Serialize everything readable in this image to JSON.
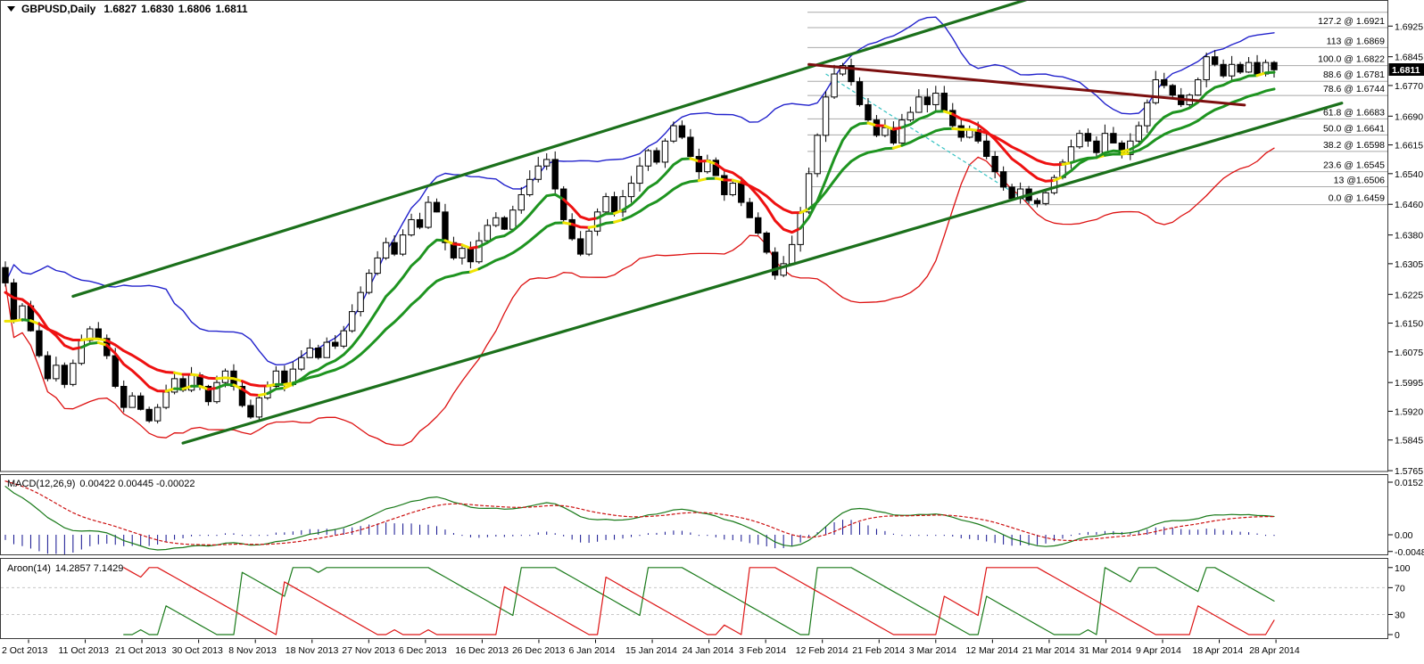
{
  "window": {
    "title_symbol": "GBPUSD,Daily",
    "ohlc": {
      "open": "1.6827",
      "high": "1.6830",
      "low": "1.6806",
      "close": "1.6811"
    }
  },
  "colors": {
    "background": "#ffffff",
    "pane_border": "#3a3a3a",
    "candle_up_fill": "#ffffff",
    "candle_down_fill": "#000000",
    "candle_outline": "#000000",
    "band_upper_blue": "#2222cc",
    "band_lower_red": "#dd1111",
    "ma_green": "#1e9420",
    "ma_red": "#ee1111",
    "ma_yellow": "#efe400",
    "channel_green": "#1b701b",
    "trendline_maroon": "#7c0f0f",
    "fibo_diagonal_cyan": "#35c2c2",
    "fib_line": "#a8a8a8",
    "fib_label": "#7b93ab",
    "macd_line": "#1a7a1a",
    "macd_signal": "#cc1111",
    "macd_histogram": "#10108e",
    "aroon_up": "#1a7a1a",
    "aroon_down": "#dd1414",
    "level_dashed": "#c8c8c8",
    "current_price_bg": "#000000",
    "current_price_text": "#ffffff"
  },
  "price_axis": {
    "ticks": [
      "1.6925",
      "1.6845",
      "1.6770",
      "1.6690",
      "1.6615",
      "1.6540",
      "1.6460",
      "1.6380",
      "1.6305",
      "1.6225",
      "1.6150",
      "1.6075",
      "1.5995",
      "1.5920",
      "1.5845",
      "1.5765"
    ],
    "tick_values": [
      1.6925,
      1.6845,
      1.677,
      1.669,
      1.6615,
      1.654,
      1.646,
      1.638,
      1.6305,
      1.6225,
      1.615,
      1.6075,
      1.5995,
      1.592,
      1.5845,
      1.5765
    ],
    "current": "1.6811",
    "current_value": 1.6811
  },
  "time_axis": {
    "labels": [
      "2 Oct 2013",
      "11 Oct 2013",
      "21 Oct 2013",
      "30 Oct 2013",
      "8 Nov 2013",
      "18 Nov 2013",
      "27 Nov 2013",
      "6 Dec 2013",
      "16 Dec 2013",
      "26 Dec 2013",
      "6 Jan 2014",
      "15 Jan 2014",
      "24 Jan 2014",
      "3 Feb 2014",
      "12 Feb 2014",
      "21 Feb 2014",
      "3 Mar 2014",
      "12 Mar 2014",
      "21 Mar 2014",
      "31 Mar 2014",
      "9 Apr 2014",
      "18 Apr 2014",
      "28 Apr 2014"
    ]
  },
  "fibonacci": {
    "levels": [
      {
        "label": "",
        "price": 1.6961
      },
      {
        "label": "127.2 @ 1.6921",
        "price": 1.6921
      },
      {
        "label": "113 @ 1.6869",
        "price": 1.6869
      },
      {
        "label": "100.0 @ 1.6822",
        "price": 1.6822
      },
      {
        "label": "88.6 @ 1.6781",
        "price": 1.6781
      },
      {
        "label": "78.6 @ 1.6744",
        "price": 1.6744
      },
      {
        "label": "61.8 @ 1.6683",
        "price": 1.6683
      },
      {
        "label": "50.0 @ 1.6641",
        "price": 1.6641
      },
      {
        "label": "38.2 @ 1.6598",
        "price": 1.6598
      },
      {
        "label": "23.6 @ 1.6545",
        "price": 1.6545
      },
      {
        "label": "13 @1.6506",
        "price": 1.6506
      },
      {
        "label": "0.0 @ 1.6459",
        "price": 1.6459
      }
    ],
    "start_x": 905
  },
  "indicators": {
    "macd": {
      "name": "MACD(12,26,9)",
      "values": "0.00422 0.00445 -0.00022",
      "axis": [
        {
          "label": "0.0152",
          "value": 0.0152
        },
        {
          "label": "0.00",
          "value": 0
        },
        {
          "label": "-0.00483",
          "value": -0.00483
        }
      ]
    },
    "aroon": {
      "name": "Aroon(14)",
      "values": "14.2857 7.1429",
      "axis": [
        {
          "label": "100",
          "value": 100
        },
        {
          "label": "70",
          "value": 70
        },
        {
          "label": "30",
          "value": 30
        },
        {
          "label": "0",
          "value": 0
        }
      ],
      "dashed_levels": [
        70,
        30
      ]
    }
  },
  "chart_data": {
    "type": "candlestick",
    "symbol": "GBPUSD",
    "timeframe": "Daily",
    "title": "GBPUSD,Daily 1.6827 1.6830 1.6806 1.6811",
    "ylim": [
      1.5738,
      1.6993
    ],
    "x_range_dates": [
      "2 Oct 2013",
      "30 Apr 2014"
    ],
    "closes": [
      1.6255,
      1.616,
      1.6195,
      1.613,
      1.6065,
      1.6005,
      1.604,
      1.599,
      1.6045,
      1.6105,
      1.6135,
      1.611,
      1.6065,
      1.5985,
      1.593,
      1.596,
      1.5925,
      1.5895,
      1.593,
      1.597,
      1.6005,
      1.5975,
      1.6015,
      1.5985,
      1.5945,
      1.5995,
      1.6025,
      1.5985,
      1.5935,
      1.5905,
      1.5955,
      1.5985,
      1.6025,
      1.599,
      1.603,
      1.606,
      1.6085,
      1.606,
      1.61,
      1.609,
      1.613,
      1.618,
      1.623,
      1.628,
      1.632,
      1.636,
      1.633,
      1.638,
      1.642,
      1.64,
      1.6465,
      1.644,
      1.636,
      1.632,
      1.6345,
      1.631,
      1.6365,
      1.6405,
      1.6425,
      1.6395,
      1.6445,
      1.6485,
      1.6525,
      1.656,
      1.6577,
      1.65,
      1.642,
      1.637,
      1.633,
      1.639,
      1.644,
      1.648,
      1.644,
      1.648,
      1.6515,
      1.656,
      1.66,
      1.657,
      1.6625,
      1.6665,
      1.6635,
      1.6585,
      1.6545,
      1.6575,
      1.6535,
      1.6485,
      1.6515,
      1.6465,
      1.6425,
      1.6385,
      1.6335,
      1.6275,
      1.6305,
      1.6355,
      1.644,
      1.654,
      1.664,
      1.674,
      1.68,
      1.6822,
      1.678,
      1.672,
      1.668,
      1.664,
      1.666,
      1.662,
      1.668,
      1.67,
      1.674,
      1.672,
      1.675,
      1.6705,
      1.6665,
      1.6635,
      1.6655,
      1.6625,
      1.6585,
      1.6545,
      1.6505,
      1.6475,
      1.65,
      1.647,
      1.6462,
      1.649,
      1.653,
      1.657,
      1.661,
      1.6645,
      1.6625,
      1.6595,
      1.6645,
      1.662,
      1.659,
      1.6625,
      1.6665,
      1.6725,
      1.6785,
      1.677,
      1.6745,
      1.672,
      1.6745,
      1.6785,
      1.6845,
      1.6825,
      1.6795,
      1.6825,
      1.6805,
      1.683,
      1.68,
      1.683,
      1.6811
    ],
    "params": {
      "bollinger_period": 20,
      "bollinger_dev": 2,
      "ema_fast": 9,
      "ema_slow": 20,
      "macd": [
        12,
        26,
        9
      ],
      "aroon": 14
    },
    "trendlines": [
      {
        "name": "channel-upper",
        "from": {
          "bar": 8,
          "price": 1.622
        },
        "to": {
          "bar": 121,
          "price": 1.6996
        },
        "color": "channel_green",
        "width": 3.2,
        "dash": ""
      },
      {
        "name": "channel-lower",
        "from": {
          "bar": 21,
          "price": 1.5837
        },
        "to": {
          "bar": 158,
          "price": 1.6724
        },
        "color": "channel_green",
        "width": 3.2,
        "dash": ""
      },
      {
        "name": "resistance-trendline",
        "from": {
          "bar": 95,
          "price": 1.6825
        },
        "to": {
          "bar": 146.5,
          "price": 1.6719
        },
        "color": "trendline_maroon",
        "width": 3,
        "dash": ""
      },
      {
        "name": "fibo-diagonal",
        "from": {
          "bar": 97,
          "price": 1.68
        },
        "to": {
          "bar": 121.5,
          "price": 1.6458
        },
        "color": "fibo_diagonal_cyan",
        "width": 1.2,
        "dash": "4,3"
      }
    ]
  }
}
